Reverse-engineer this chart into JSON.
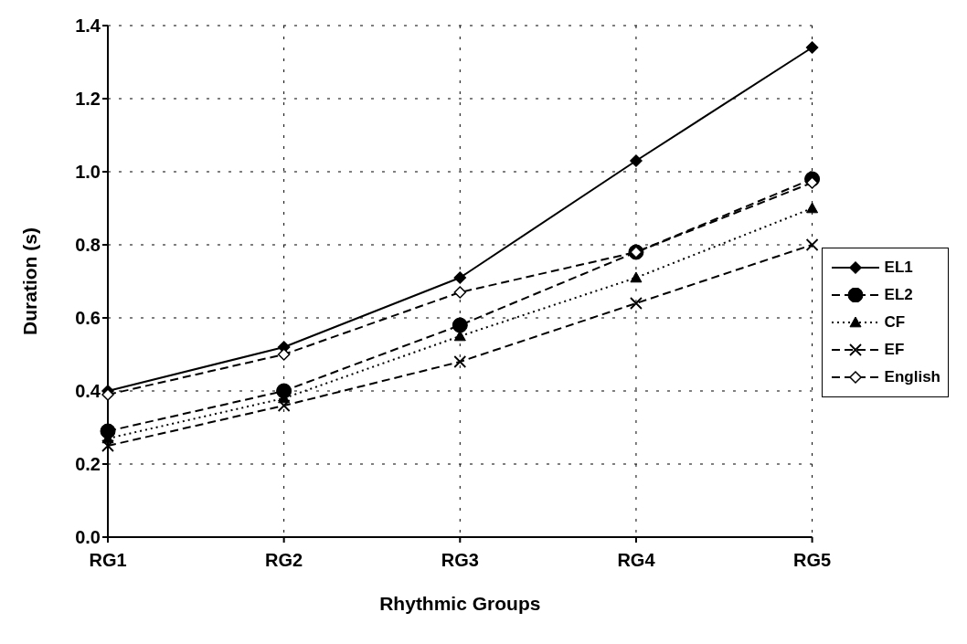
{
  "chart_data": {
    "type": "line",
    "xlabel": "Rhythmic Groups",
    "ylabel": "Duration (s)",
    "categories": [
      "RG1",
      "RG2",
      "RG3",
      "RG4",
      "RG5"
    ],
    "series": [
      {
        "name": "EL1",
        "color": "#000000",
        "marker": "diamond",
        "line_style": "solid",
        "values": [
          0.4,
          0.52,
          0.71,
          1.03,
          1.34
        ]
      },
      {
        "name": "EL2",
        "color": "#000000",
        "marker": "circle",
        "line_style": "dashed",
        "values": [
          0.29,
          0.4,
          0.58,
          0.78,
          0.98
        ]
      },
      {
        "name": "CF",
        "color": "#000000",
        "marker": "triangle",
        "line_style": "dotted",
        "values": [
          0.27,
          0.38,
          0.55,
          0.71,
          0.9
        ]
      },
      {
        "name": "EF",
        "color": "#000000",
        "marker": "cross",
        "line_style": "dashed",
        "values": [
          0.25,
          0.36,
          0.48,
          0.64,
          0.8
        ]
      },
      {
        "name": "English",
        "color": "#000000",
        "marker": "diamond",
        "line_style": "dashed",
        "values": [
          0.39,
          0.5,
          0.67,
          0.78,
          0.97
        ]
      }
    ],
    "ylim": [
      0,
      1.4
    ],
    "yticks": [
      {
        "value": 0,
        "label": "0.0"
      },
      0.2,
      0.4,
      0.6,
      0.8,
      {
        "value": 1,
        "label": "1.0"
      },
      1.2,
      1.4
    ],
    "grid": true,
    "legend": "right"
  }
}
